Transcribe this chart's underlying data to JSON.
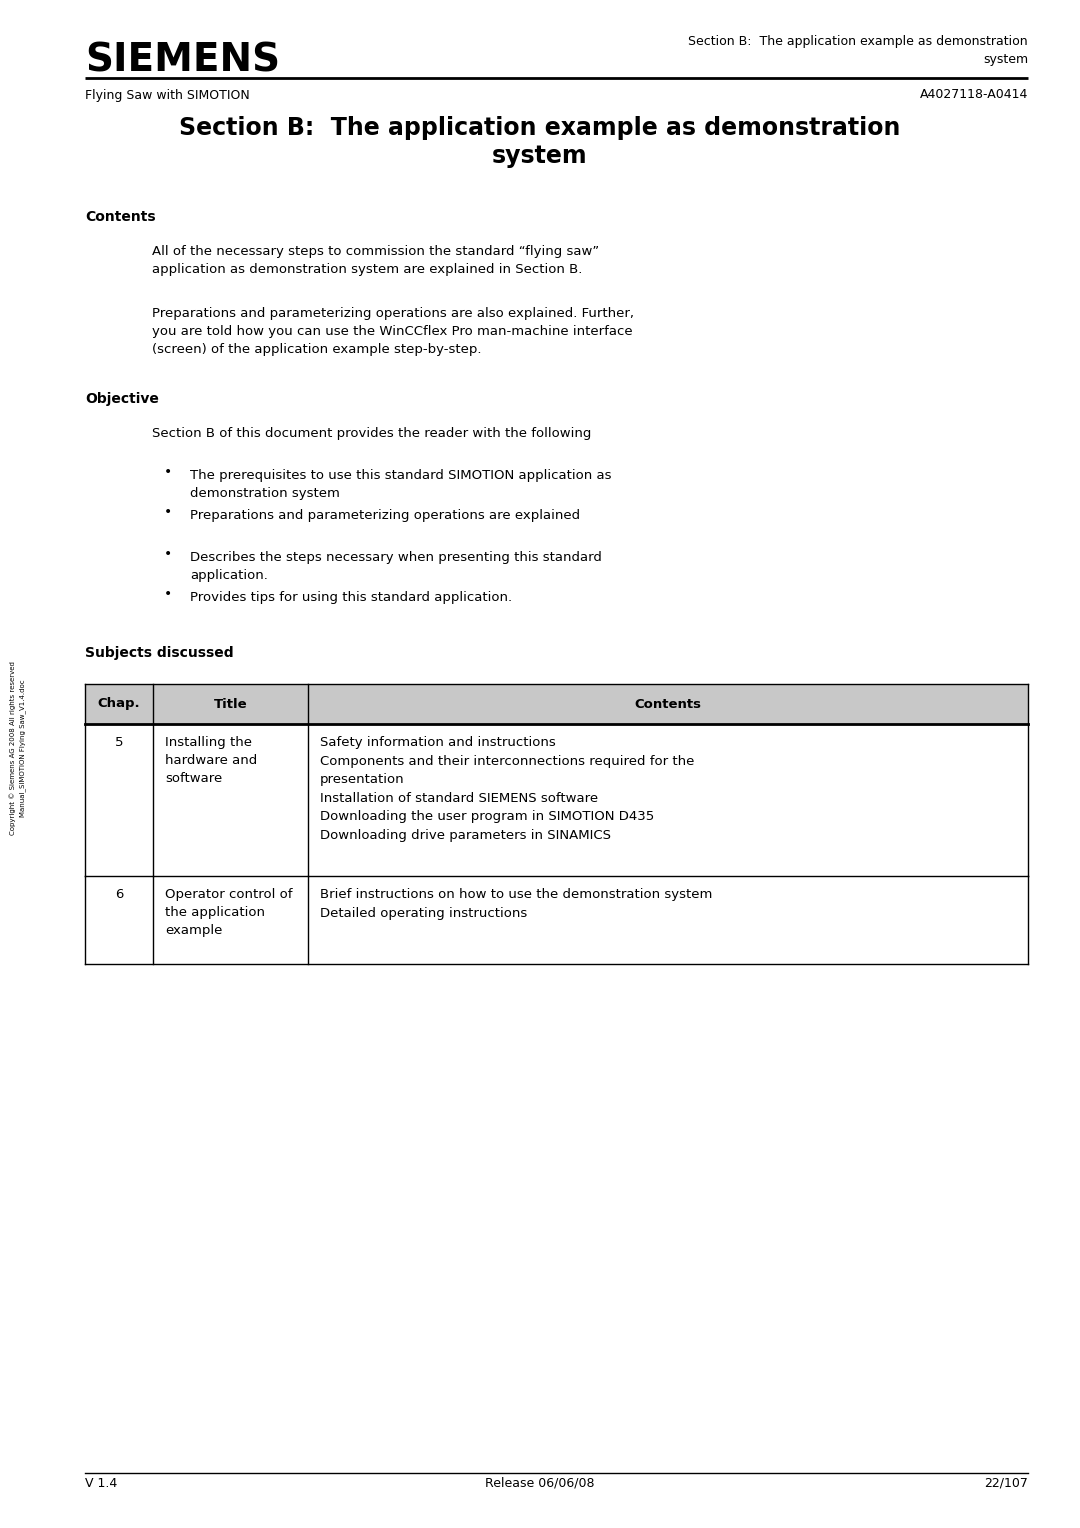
{
  "bg_color": "#ffffff",
  "page_width": 10.8,
  "page_height": 15.28,
  "dpi": 100,
  "header_siemens": "SIEMENS",
  "header_right_line1": "Section B:  The application example as demonstration",
  "header_right_line2": "system",
  "header_left_sub": "Flying Saw with SIMOTION",
  "header_right_sub": "A4027118-A0414",
  "main_title_line1": "Section B:  The application example as demonstration",
  "main_title_line2": "system",
  "section1_heading": "Contents",
  "section1_para1": "All of the necessary steps to commission the standard “flying saw”\napplication as demonstration system are explained in Section B.",
  "section1_para2": "Preparations and parameterizing operations are also explained. Further,\nyou are told how you can use the WinCCflex Pro man-machine interface\n(screen) of the application example step-by-step.",
  "section2_heading": "Objective",
  "section2_intro": "Section B of this document provides the reader with the following",
  "bullets": [
    "The prerequisites to use this standard SIMOTION application as\ndemonstration system",
    "Preparations and parameterizing operations are explained",
    "Describes the steps necessary when presenting this standard\napplication.",
    "Provides tips for using this standard application."
  ],
  "section3_heading": "Subjects discussed",
  "table_headers": [
    "Chap.",
    "Title",
    "Contents"
  ],
  "table_rows": [
    {
      "chap": "5",
      "title": "Installing the\nhardware and\nsoftware",
      "contents": "Safety information and instructions\nComponents and their interconnections required for the\npresentation\nInstallation of standard SIEMENS software\nDownloading the user program in SIMOTION D435\nDownloading drive parameters in SINAMICS"
    },
    {
      "chap": "6",
      "title": "Operator control of\nthe application\nexample",
      "contents": "Brief instructions on how to use the demonstration system\nDetailed operating instructions"
    }
  ],
  "footer_left": "V 1.4",
  "footer_center": "Release 06/06/08",
  "footer_right": "22/107",
  "sidebar_text": "Copyright © Siemens AG 2008 All rights reserved\nManual_SIMOTION Flying Saw_V1.4.doc"
}
